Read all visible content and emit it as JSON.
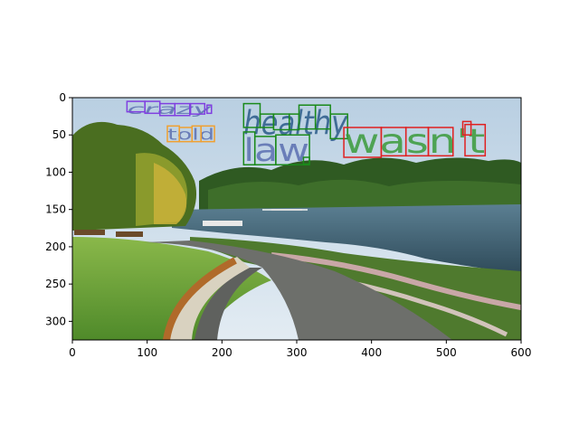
{
  "chart_data": {
    "type": "image_with_text_boxes",
    "title": "",
    "xlabel": "",
    "ylabel": "",
    "xlim": [
      0,
      600
    ],
    "ylim": [
      325,
      0
    ],
    "x_ticks": [
      0,
      100,
      200,
      300,
      400,
      500,
      600
    ],
    "y_ticks": [
      0,
      50,
      100,
      150,
      200,
      250,
      300
    ],
    "grid": false,
    "words": [
      {
        "word": "crazy",
        "box_color": "#8040e0",
        "text_color": "#5a6fb0",
        "italic": true,
        "boxes": [
          [
            73,
            5,
            97,
            19
          ],
          [
            97,
            5,
            117,
            21
          ],
          [
            117,
            8,
            137,
            24
          ],
          [
            137,
            8,
            157,
            24
          ],
          [
            158,
            8,
            177,
            22
          ],
          [
            180,
            10,
            186,
            21
          ]
        ],
        "text_box": [
          73,
          5,
          186,
          24
        ]
      },
      {
        "word": "told",
        "box_color": "#f0a030",
        "text_color": "#5a6fb0",
        "italic": false,
        "boxes": [
          [
            127,
            38,
            143,
            59
          ],
          [
            143,
            40,
            160,
            59
          ],
          [
            160,
            38,
            172,
            59
          ],
          [
            172,
            38,
            190,
            59
          ]
        ],
        "text_box": [
          127,
          38,
          190,
          59
        ]
      },
      {
        "word": "healthy",
        "box_color": "#1a8a1a",
        "text_color": "#2a5a8a",
        "italic": true,
        "boxes": [
          [
            229,
            8,
            251,
            40
          ],
          [
            251,
            22,
            269,
            40
          ],
          [
            269,
            22,
            290,
            43
          ],
          [
            290,
            22,
            303,
            43
          ],
          [
            303,
            10,
            325,
            42
          ],
          [
            325,
            10,
            345,
            42
          ],
          [
            345,
            22,
            368,
            55
          ]
        ],
        "text_box": [
          229,
          8,
          368,
          55
        ]
      },
      {
        "word": "law",
        "box_color": "#1a8a1a",
        "text_color": "#5a6fb0",
        "italic": false,
        "boxes": [
          [
            229,
            46,
            244,
            90
          ],
          [
            244,
            52,
            272,
            90
          ],
          [
            272,
            50,
            317,
            90
          ],
          [
            309,
            80,
            317,
            89
          ]
        ],
        "text_box": [
          229,
          46,
          317,
          90
        ]
      },
      {
        "word": "wasn't",
        "box_color": "#e02020",
        "text_color": "#3a9a3a",
        "italic": false,
        "boxes": [
          [
            363,
            40,
            413,
            80
          ],
          [
            413,
            40,
            446,
            78
          ],
          [
            446,
            40,
            476,
            78
          ],
          [
            476,
            40,
            509,
            78
          ],
          [
            522,
            32,
            533,
            50
          ],
          [
            525,
            36,
            552,
            78
          ]
        ],
        "text_box": [
          363,
          32,
          552,
          80
        ]
      }
    ]
  }
}
